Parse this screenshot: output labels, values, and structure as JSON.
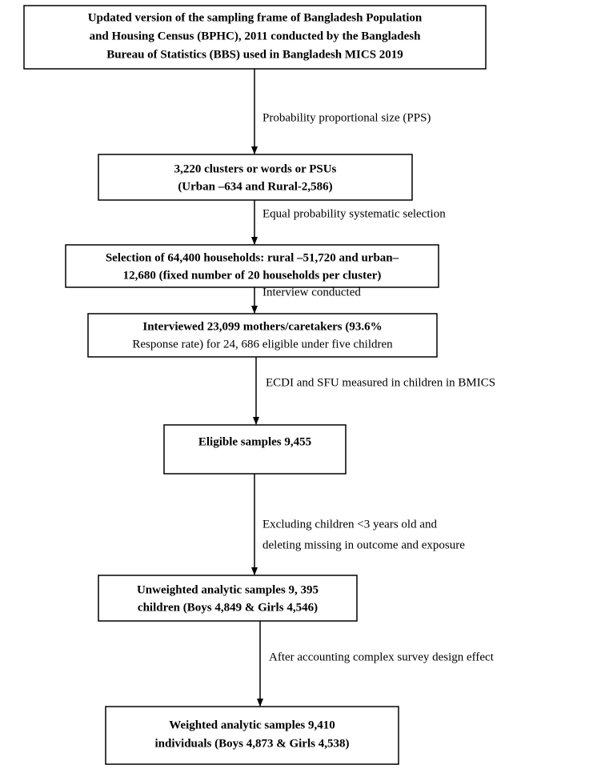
{
  "nodes": [
    {
      "lines": [
        "Updated version of the sampling frame of Bangladesh Population",
        "and Housing Census (BPHC), 2011 conducted by the Bangladesh",
        "Bureau of Statistics (BBS) used in Bangladesh MICS 2019"
      ]
    },
    {
      "lines": [
        "3,220 clusters or words or PSUs",
        "(Urban –634 and Rural-2,586)"
      ]
    },
    {
      "lines": [
        "Selection of 64,400 households: rural –51,720 and urban–",
        "12,680 (fixed number of 20 households per cluster)"
      ]
    },
    {
      "lines": [
        "Interviewed 23,099 mothers/caretakers (93.6%",
        "Response rate) for 24, 686 eligible under five children"
      ]
    },
    {
      "lines": [
        "Eligible samples 9,455"
      ]
    },
    {
      "lines": [
        "Unweighted analytic samples 9, 395",
        "children (Boys 4,849 & Girls 4,546)"
      ]
    },
    {
      "lines": [
        "Weighted analytic samples 9,410",
        "individuals (Boys 4,873 & Girls 4,538)"
      ]
    }
  ],
  "edges": [
    {
      "label": [
        "Probability proportional size (PPS)"
      ]
    },
    {
      "label": [
        "Equal probability systematic selection"
      ]
    },
    {
      "label": [
        "Interview conducted"
      ]
    },
    {
      "label": [
        "ECDI and SFU measured in children in BMICS"
      ]
    },
    {
      "label": [
        "Excluding children <3 years old and",
        "deleting missing in outcome and exposure"
      ]
    },
    {
      "label": [
        "After accounting complex survey design effect"
      ]
    }
  ]
}
